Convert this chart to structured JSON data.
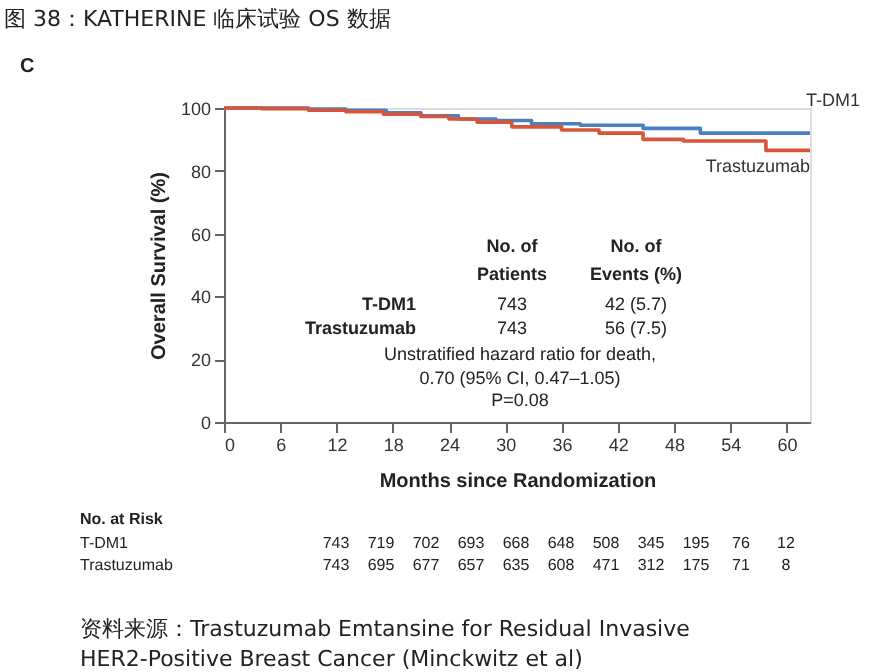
{
  "chart_data": {
    "type": "step",
    "title": "图 38：KATHERINE 临床试验 OS 数据",
    "xlabel": "Months since Randomization",
    "ylabel": "Overall Survival (%)",
    "xlim": [
      0,
      62.5
    ],
    "xticks": [
      0,
      6,
      12,
      18,
      24,
      30,
      36,
      42,
      48,
      54,
      60
    ],
    "ylim": [
      0,
      100
    ],
    "yticks": [
      0,
      20,
      40,
      60,
      80,
      100
    ],
    "legend": false,
    "grid": false,
    "line_style": "solid",
    "marker": "none",
    "series": [
      {
        "name": "T-DM1",
        "color": "#4a7fc1",
        "x": [
          0,
          4,
          9,
          13,
          17.3,
          21,
          25,
          29,
          32.8,
          38,
          44.7,
          50.8,
          62.5
        ],
        "values": [
          100,
          100,
          99.7,
          99.3,
          98.5,
          97.5,
          96.5,
          96,
          95,
          94.5,
          93.5,
          92,
          92
        ]
      },
      {
        "name": "Trastuzumab",
        "color": "#d9553a",
        "x": [
          0,
          4,
          9,
          13,
          17,
          21,
          24,
          27,
          30.7,
          36,
          40,
          44.7,
          49,
          57.8,
          62.5
        ],
        "values": [
          100,
          99.8,
          99.3,
          98.8,
          98,
          97.3,
          96.5,
          95.5,
          94,
          93,
          92,
          90,
          89.5,
          86.5,
          86.5
        ]
      }
    ],
    "annotations": [
      "C",
      "No. of",
      "Patients",
      "No. of",
      "Events (%)",
      "T-DM1",
      "743",
      "42 (5.7)",
      "Trastuzumab",
      "743",
      "56 (7.5)",
      "Unstratified hazard ratio for death,",
      "0.70 (95% CI, 0.47–1.05)",
      "P=0.08",
      "No. at Risk",
      "T-DM1",
      "743",
      "719",
      "702",
      "693",
      "668",
      "648",
      "508",
      "345",
      "195",
      "76",
      "12",
      "Trastuzumab",
      "743",
      "695",
      "677",
      "657",
      "635",
      "608",
      "471",
      "312",
      "175",
      "71",
      "8",
      "资料来源：Trastuzumab Emtansine for Residual Invasive",
      "HER2-Positive Breast Cancer (Minckwitz et al)"
    ]
  }
}
